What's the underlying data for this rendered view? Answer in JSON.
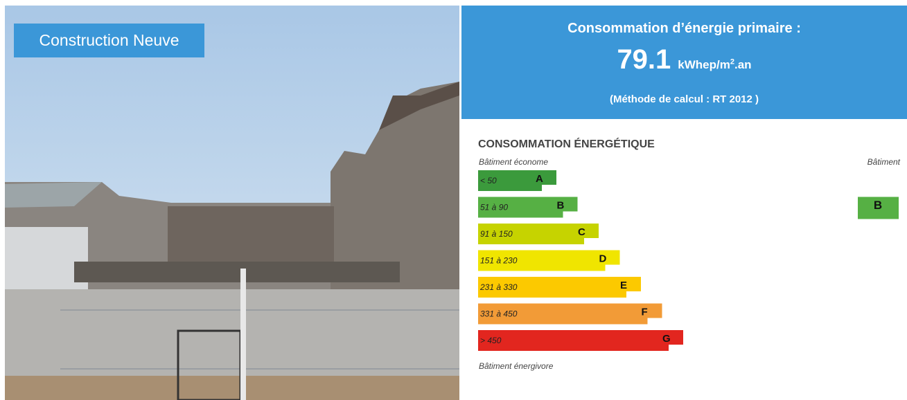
{
  "photo_label": "Construction Neuve",
  "header": {
    "title": "Consommation d’énergie primaire :",
    "value": "79.1",
    "unit": "kWhep/m",
    "unit_sup": "2",
    "unit_suffix": ".an",
    "method": "(Méthode de calcul : RT 2012 )"
  },
  "label": {
    "title": "CONSOMMATION ÉNERGÉTIQUE",
    "top_left": "Bâtiment économe",
    "top_right": "Bâtiment",
    "bottom": "Bâtiment énergivore",
    "classes": [
      {
        "range": "< 50",
        "letter": "A",
        "color": "#3b9a3c"
      },
      {
        "range": "51 à 90",
        "letter": "B",
        "color": "#56b044"
      },
      {
        "range": "91 à 150",
        "letter": "C",
        "color": "#c6d300"
      },
      {
        "range": "151 à 230",
        "letter": "D",
        "color": "#f0e500"
      },
      {
        "range": "231 à 330",
        "letter": "E",
        "color": "#fcc900"
      },
      {
        "range": "331 à 450",
        "letter": "F",
        "color": "#f29b37"
      },
      {
        "range": "> 450",
        "letter": "G",
        "color": "#e2261f"
      }
    ],
    "current": "B"
  }
}
